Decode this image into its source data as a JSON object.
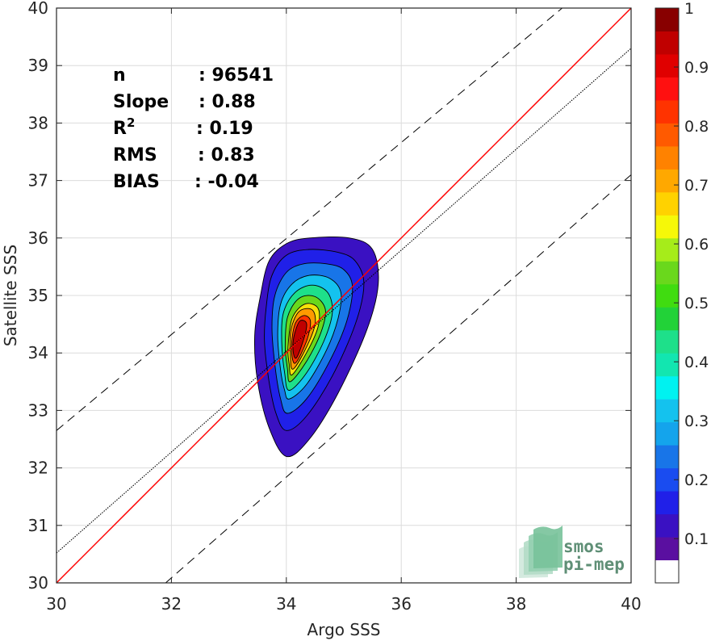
{
  "chart_data": {
    "type": "heatmap",
    "subtype": "density-contour",
    "xlabel": "Argo SSS",
    "ylabel": "Satellite SSS",
    "xlim": [
      30,
      40
    ],
    "ylim": [
      30,
      40
    ],
    "xticks": [
      30,
      32,
      34,
      36,
      38,
      40
    ],
    "yticks": [
      30,
      31,
      32,
      33,
      34,
      35,
      36,
      37,
      38,
      39,
      40
    ],
    "grid": true,
    "stats": [
      {
        "key": "n",
        "sep": ":",
        "value": "96541"
      },
      {
        "key": "Slope",
        "sep": ":",
        "value": "0.88"
      },
      {
        "key": "R",
        "sup": "2",
        "sep": ":",
        "value": "0.19"
      },
      {
        "key": "RMS",
        "sep": ":",
        "value": "0.83"
      },
      {
        "key": "BIAS",
        "sep": ":",
        "value": "-0.04"
      }
    ],
    "lines": [
      {
        "kind": "one-to-one",
        "color": "#ff0000",
        "style": "solid",
        "points": [
          [
            30,
            30
          ],
          [
            40,
            40
          ]
        ]
      },
      {
        "kind": "regression",
        "color": "#000000",
        "style": "dotted",
        "points": [
          [
            30,
            30.52
          ],
          [
            40,
            39.3
          ]
        ]
      },
      {
        "kind": "upper-bound",
        "color": "#000000",
        "style": "dashed",
        "points": [
          [
            30,
            32.65
          ],
          [
            38.8,
            40
          ]
        ]
      },
      {
        "kind": "lower-bound",
        "color": "#000000",
        "style": "dashed",
        "points": [
          [
            31.9,
            30
          ],
          [
            40,
            37.1
          ]
        ]
      }
    ],
    "contour_levels": [
      {
        "level": 0.05,
        "color": "#3a11c2",
        "polygon": [
          [
            34.0,
            32.2
          ],
          [
            34.4,
            32.5
          ],
          [
            34.9,
            33.3
          ],
          [
            35.4,
            34.4
          ],
          [
            35.6,
            35.2
          ],
          [
            35.5,
            35.8
          ],
          [
            35.1,
            36.0
          ],
          [
            34.4,
            36.0
          ],
          [
            34.0,
            35.9
          ],
          [
            33.7,
            35.6
          ],
          [
            33.55,
            35.0
          ],
          [
            33.45,
            34.3
          ],
          [
            33.5,
            33.5
          ],
          [
            33.7,
            32.7
          ]
        ]
      },
      {
        "level": 0.15,
        "color": "#2020e8",
        "polygon": [
          [
            34.0,
            32.65
          ],
          [
            34.35,
            32.9
          ],
          [
            34.8,
            33.6
          ],
          [
            35.2,
            34.5
          ],
          [
            35.35,
            35.2
          ],
          [
            35.2,
            35.6
          ],
          [
            34.9,
            35.75
          ],
          [
            34.4,
            35.8
          ],
          [
            34.0,
            35.7
          ],
          [
            33.75,
            35.35
          ],
          [
            33.65,
            34.8
          ],
          [
            33.62,
            34.2
          ],
          [
            33.7,
            33.5
          ],
          [
            33.82,
            32.95
          ]
        ]
      },
      {
        "level": 0.25,
        "color": "#1875e8",
        "polygon": [
          [
            34.02,
            32.95
          ],
          [
            34.35,
            33.2
          ],
          [
            34.75,
            33.85
          ],
          [
            35.05,
            34.55
          ],
          [
            35.15,
            35.15
          ],
          [
            35.0,
            35.45
          ],
          [
            34.7,
            35.55
          ],
          [
            34.3,
            35.55
          ],
          [
            34.0,
            35.4
          ],
          [
            33.8,
            35.0
          ],
          [
            33.75,
            34.45
          ],
          [
            33.8,
            33.8
          ],
          [
            33.9,
            33.2
          ]
        ]
      },
      {
        "level": 0.35,
        "color": "#14c2ee",
        "polygon": [
          [
            34.05,
            33.2
          ],
          [
            34.35,
            33.45
          ],
          [
            34.7,
            34.05
          ],
          [
            34.9,
            34.6
          ],
          [
            34.95,
            35.05
          ],
          [
            34.75,
            35.3
          ],
          [
            34.4,
            35.35
          ],
          [
            34.1,
            35.2
          ],
          [
            33.9,
            34.85
          ],
          [
            33.85,
            34.3
          ],
          [
            33.9,
            33.7
          ],
          [
            33.97,
            33.35
          ]
        ]
      },
      {
        "level": 0.45,
        "color": "#1ee08a",
        "polygon": [
          [
            34.05,
            33.35
          ],
          [
            34.35,
            33.65
          ],
          [
            34.65,
            34.2
          ],
          [
            34.8,
            34.7
          ],
          [
            34.72,
            35.05
          ],
          [
            34.45,
            35.18
          ],
          [
            34.15,
            35.05
          ],
          [
            33.95,
            34.7
          ],
          [
            33.92,
            34.2
          ],
          [
            33.97,
            33.65
          ]
        ]
      },
      {
        "level": 0.55,
        "color": "#6ad81c",
        "polygon": [
          [
            34.07,
            33.5
          ],
          [
            34.35,
            33.85
          ],
          [
            34.6,
            34.35
          ],
          [
            34.68,
            34.75
          ],
          [
            34.5,
            34.98
          ],
          [
            34.22,
            34.95
          ],
          [
            34.02,
            34.62
          ],
          [
            33.98,
            34.1
          ],
          [
            34.02,
            33.72
          ]
        ]
      },
      {
        "level": 0.65,
        "color": "#f6e10a",
        "polygon": [
          [
            34.1,
            33.62
          ],
          [
            34.35,
            34.0
          ],
          [
            34.55,
            34.45
          ],
          [
            34.55,
            34.78
          ],
          [
            34.32,
            34.85
          ],
          [
            34.1,
            34.6
          ],
          [
            34.03,
            34.1
          ],
          [
            34.05,
            33.8
          ]
        ]
      },
      {
        "level": 0.75,
        "color": "#ff9a00",
        "polygon": [
          [
            34.12,
            33.72
          ],
          [
            34.35,
            34.1
          ],
          [
            34.5,
            34.5
          ],
          [
            34.45,
            34.75
          ],
          [
            34.22,
            34.72
          ],
          [
            34.08,
            34.4
          ],
          [
            34.07,
            33.95
          ]
        ]
      },
      {
        "level": 0.85,
        "color": "#ff3300",
        "polygon": [
          [
            34.15,
            33.82
          ],
          [
            34.35,
            34.2
          ],
          [
            34.42,
            34.55
          ],
          [
            34.3,
            34.65
          ],
          [
            34.15,
            34.5
          ],
          [
            34.09,
            34.1
          ]
        ]
      },
      {
        "level": 0.95,
        "color": "#c00000",
        "polygon": [
          [
            34.18,
            33.92
          ],
          [
            34.32,
            34.3
          ],
          [
            34.35,
            34.52
          ],
          [
            34.23,
            34.55
          ],
          [
            34.13,
            34.28
          ],
          [
            34.12,
            34.02
          ]
        ]
      }
    ],
    "colorbar": {
      "ticks": [
        "0.1",
        "0.2",
        "0.3",
        "0.4",
        "0.5",
        "0.6",
        "0.7",
        "0.8",
        "0.9",
        "1"
      ],
      "tick_values": [
        0.1,
        0.2,
        0.3,
        0.4,
        0.5,
        0.6,
        0.7,
        0.8,
        0.9,
        1.0
      ],
      "colors": [
        "#ffffff",
        "#5a0fa0",
        "#3a11c2",
        "#2020e8",
        "#1a4cf0",
        "#1875e8",
        "#14a4ec",
        "#14c2ee",
        "#00f2f0",
        "#12e6b0",
        "#1ee08a",
        "#22d238",
        "#40dc10",
        "#6ad81c",
        "#a6ec1a",
        "#f6f808",
        "#ffd200",
        "#ffa800",
        "#ff8200",
        "#ff5a00",
        "#ff3300",
        "#ff1010",
        "#e00000",
        "#c00000",
        "#880000"
      ]
    }
  },
  "logo": {
    "line1": "smos",
    "line2": "pi-mep"
  }
}
